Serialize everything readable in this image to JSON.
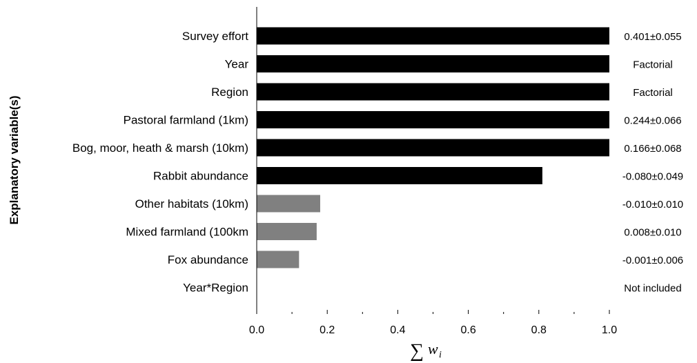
{
  "chart_data": {
    "type": "bar",
    "orientation": "horizontal",
    "categories": [
      "Survey effort",
      "Year",
      "Region",
      "Pastoral farmland (1km)",
      "Bog, moor, heath & marsh (10km)",
      "Rabbit abundance",
      "Other habitats (10km)",
      "Mixed farmland (100km",
      "Fox abundance",
      "Year*Region"
    ],
    "values": [
      1.0,
      1.0,
      1.0,
      1.0,
      1.0,
      0.81,
      0.18,
      0.17,
      0.12,
      0
    ],
    "bar_colors": [
      "#000000",
      "#000000",
      "#000000",
      "#000000",
      "#000000",
      "#000000",
      "#808080",
      "#808080",
      "#808080",
      "#808080"
    ],
    "annotations": [
      "0.401±0.055",
      "Factorial",
      "Factorial",
      "0.244±0.066",
      "0.166±0.068",
      "-0.080±0.049",
      "-0.010±0.010",
      "0.008±0.010",
      "-0.001±0.006",
      "Not  included"
    ],
    "ylabel": "Explanatory variable(s)",
    "xlabel": "∑ w_i",
    "xlabel_symbol": "∑",
    "xlabel_var": "w",
    "xlabel_sub": "i",
    "xlim": [
      0.0,
      1.0
    ],
    "xticks": [
      0.0,
      0.2,
      0.4,
      0.6,
      0.8,
      1.0
    ],
    "xtick_labels": [
      "0.0",
      "0.2",
      "0.4",
      "0.6",
      "0.8",
      "1.0"
    ],
    "grid": false,
    "legend": "none"
  }
}
